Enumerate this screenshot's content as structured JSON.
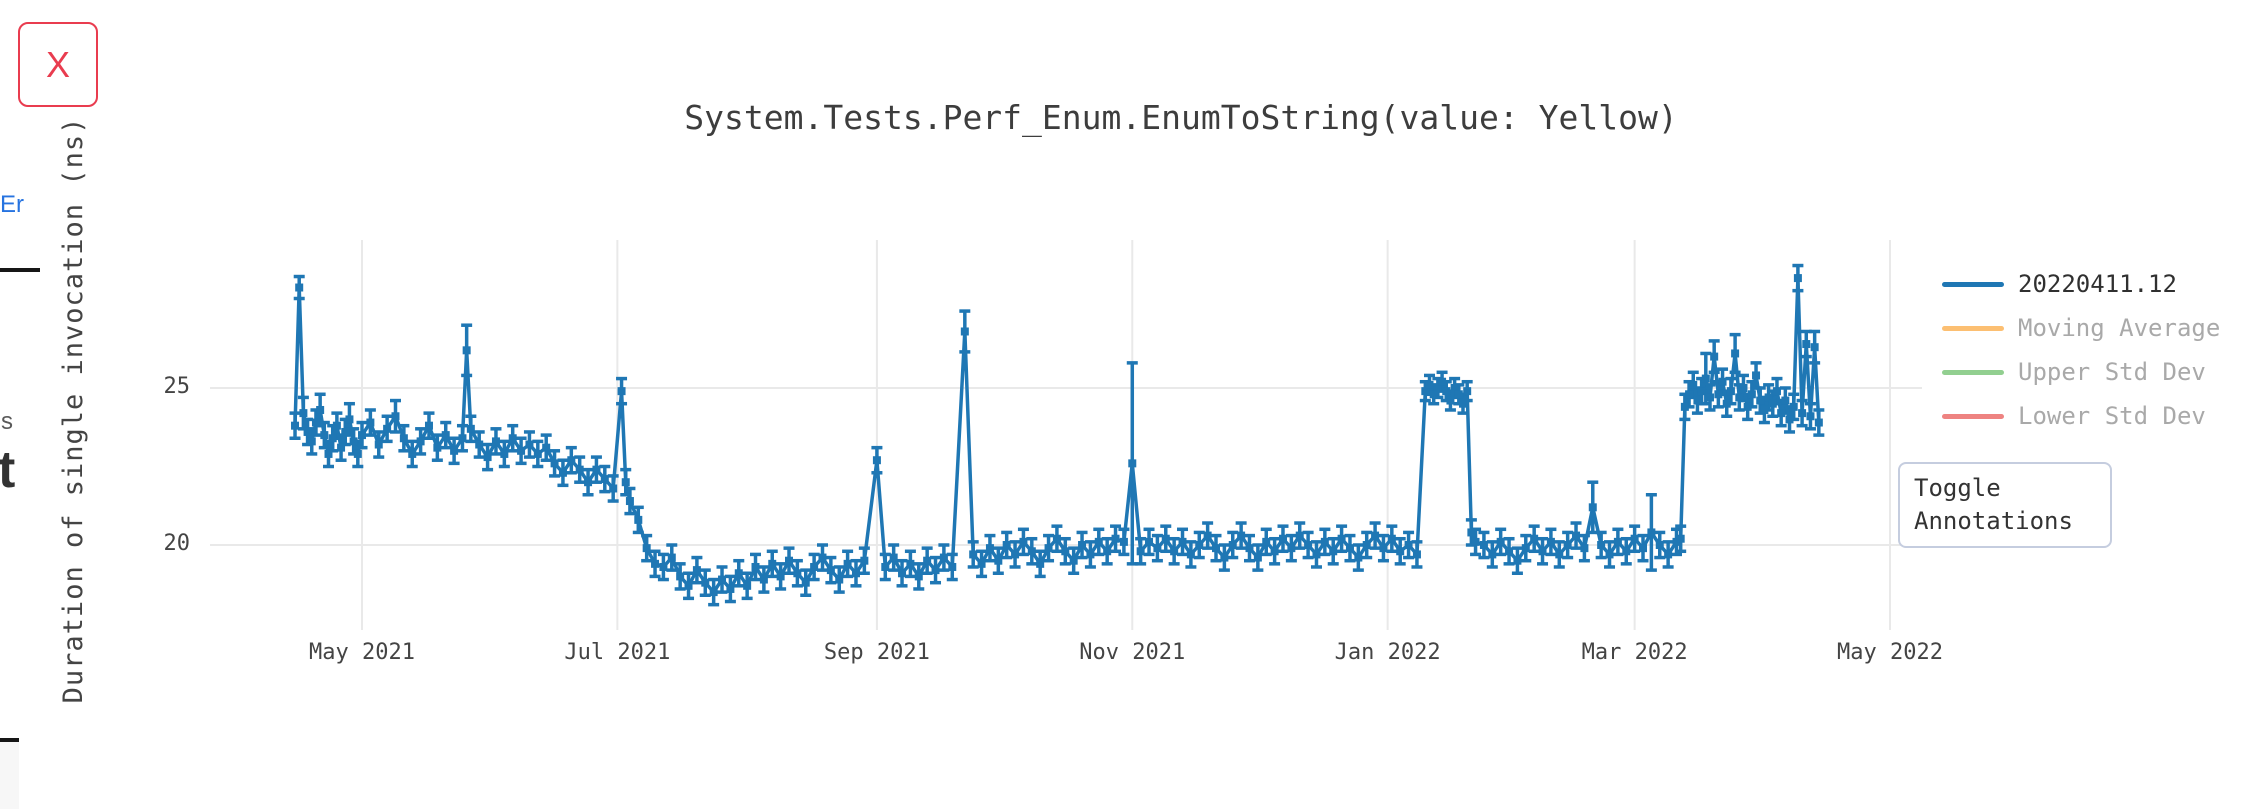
{
  "window": {
    "close_button_label": "X"
  },
  "page_behind": {
    "partial_link_text": "Er",
    "partial_text_s": "s",
    "partial_text_t": "t"
  },
  "controls": {
    "toggle_annotations_label": "Toggle Annotations"
  },
  "chart_data": {
    "type": "line",
    "title": "System.Tests.Perf_Enum.EnumToString(value: Yellow)",
    "xlabel": "",
    "ylabel": "Duration of single invocation (ns)",
    "grid": true,
    "legend_position": "right",
    "x_axis": {
      "tick_labels": [
        "May 2021",
        "Jul 2021",
        "Sep 2021",
        "Nov 2021",
        "Jan 2022",
        "Mar 2022",
        "May 2022"
      ],
      "tick_days_from_may2021": [
        0,
        61,
        123,
        184,
        245,
        304,
        365
      ]
    },
    "y_axis": {
      "tick_labels": [
        "20",
        "25"
      ],
      "tick_values": [
        20,
        25
      ],
      "ylim": [
        17.8,
        29.4
      ]
    },
    "series": [
      {
        "name": "20220411.12",
        "color": "#1f77b4",
        "visible": true,
        "style": "line+markers+errorbars",
        "default_error": 0.4,
        "points_format": "[day_since_2021-05-01, duration_ns, optional_error_ns]",
        "points": [
          [
            -16,
            23.8
          ],
          [
            -15,
            28.2,
            0.35
          ],
          [
            -14,
            24.2,
            0.5
          ],
          [
            -13,
            23.6
          ],
          [
            -12,
            23.3
          ],
          [
            -11,
            23.9
          ],
          [
            -10,
            24.3,
            0.5
          ],
          [
            -9,
            23.5
          ],
          [
            -8,
            22.9
          ],
          [
            -7,
            23.4
          ],
          [
            -6,
            23.8
          ],
          [
            -5,
            23.1
          ],
          [
            -4,
            23.6
          ],
          [
            -3,
            24.0,
            0.5
          ],
          [
            -2,
            23.3
          ],
          [
            -1,
            22.9
          ],
          [
            0,
            23.5
          ],
          [
            2,
            23.9
          ],
          [
            4,
            23.2
          ],
          [
            6,
            23.7
          ],
          [
            8,
            24.1,
            0.5
          ],
          [
            10,
            23.4
          ],
          [
            12,
            22.9
          ],
          [
            14,
            23.3
          ],
          [
            16,
            23.8
          ],
          [
            18,
            23.1
          ],
          [
            20,
            23.5
          ],
          [
            22,
            23.0
          ],
          [
            24,
            23.4
          ],
          [
            25,
            26.2,
            0.8
          ],
          [
            26,
            23.7
          ],
          [
            28,
            23.2
          ],
          [
            30,
            22.8
          ],
          [
            32,
            23.3
          ],
          [
            34,
            22.9
          ],
          [
            36,
            23.4
          ],
          [
            38,
            23.0
          ],
          [
            40,
            23.2
          ],
          [
            42,
            22.9
          ],
          [
            44,
            23.1
          ],
          [
            46,
            22.6
          ],
          [
            48,
            22.3
          ],
          [
            50,
            22.7
          ],
          [
            52,
            22.4
          ],
          [
            54,
            22.0
          ],
          [
            56,
            22.4
          ],
          [
            58,
            22.1
          ],
          [
            60,
            21.8
          ],
          [
            62,
            24.9,
            0.4
          ],
          [
            63,
            22.0
          ],
          [
            64,
            21.4
          ],
          [
            66,
            20.8
          ],
          [
            68,
            19.9
          ],
          [
            70,
            19.4
          ],
          [
            72,
            19.3
          ],
          [
            74,
            19.6
          ],
          [
            76,
            19.0
          ],
          [
            78,
            18.7
          ],
          [
            80,
            19.2
          ],
          [
            82,
            18.8
          ],
          [
            84,
            18.5
          ],
          [
            86,
            18.9
          ],
          [
            88,
            18.6
          ],
          [
            90,
            19.1
          ],
          [
            92,
            18.7
          ],
          [
            94,
            19.3
          ],
          [
            96,
            18.9
          ],
          [
            98,
            19.4
          ],
          [
            100,
            19.0
          ],
          [
            102,
            19.5
          ],
          [
            104,
            19.1
          ],
          [
            106,
            18.8
          ],
          [
            108,
            19.3
          ],
          [
            110,
            19.6
          ],
          [
            112,
            19.2
          ],
          [
            114,
            18.9
          ],
          [
            116,
            19.4
          ],
          [
            118,
            19.1
          ],
          [
            120,
            19.5
          ],
          [
            123,
            22.7,
            0.4
          ],
          [
            125,
            19.3
          ],
          [
            127,
            19.6
          ],
          [
            129,
            19.1
          ],
          [
            131,
            19.4
          ],
          [
            133,
            19.0
          ],
          [
            135,
            19.5
          ],
          [
            137,
            19.2
          ],
          [
            139,
            19.6
          ],
          [
            141,
            19.3
          ],
          [
            144,
            26.8,
            0.65
          ],
          [
            146,
            19.7
          ],
          [
            148,
            19.4
          ],
          [
            150,
            19.9
          ],
          [
            152,
            19.5
          ],
          [
            154,
            20.0
          ],
          [
            156,
            19.7
          ],
          [
            158,
            20.1
          ],
          [
            160,
            19.8
          ],
          [
            162,
            19.4
          ],
          [
            164,
            19.9
          ],
          [
            166,
            20.2
          ],
          [
            168,
            19.8
          ],
          [
            170,
            19.5
          ],
          [
            172,
            20.0
          ],
          [
            174,
            19.7
          ],
          [
            176,
            20.1
          ],
          [
            178,
            19.8
          ],
          [
            180,
            20.2
          ],
          [
            182,
            20.1
          ],
          [
            184,
            22.6,
            3.2
          ],
          [
            186,
            19.8
          ],
          [
            188,
            20.1
          ],
          [
            190,
            19.9
          ],
          [
            192,
            20.2
          ],
          [
            194,
            19.8
          ],
          [
            196,
            20.1
          ],
          [
            198,
            19.7
          ],
          [
            200,
            20.0
          ],
          [
            202,
            20.3
          ],
          [
            204,
            19.9
          ],
          [
            206,
            19.6
          ],
          [
            208,
            20.0
          ],
          [
            210,
            20.3
          ],
          [
            212,
            19.9
          ],
          [
            214,
            19.6
          ],
          [
            216,
            20.1
          ],
          [
            218,
            19.8
          ],
          [
            220,
            20.2
          ],
          [
            222,
            19.9
          ],
          [
            224,
            20.3
          ],
          [
            226,
            20.0
          ],
          [
            228,
            19.7
          ],
          [
            230,
            20.1
          ],
          [
            232,
            19.8
          ],
          [
            234,
            20.2
          ],
          [
            236,
            19.9
          ],
          [
            238,
            19.6
          ],
          [
            240,
            20.0
          ],
          [
            242,
            20.3
          ],
          [
            244,
            19.9
          ],
          [
            246,
            20.2
          ],
          [
            248,
            19.8
          ],
          [
            250,
            20.0
          ],
          [
            252,
            19.7
          ],
          [
            254,
            24.9,
            0.3
          ],
          [
            255,
            25.1,
            0.3
          ],
          [
            256,
            24.8,
            0.3
          ],
          [
            257,
            25.0,
            0.3
          ],
          [
            258,
            25.2,
            0.3
          ],
          [
            259,
            24.9,
            0.3
          ],
          [
            260,
            24.6,
            0.3
          ],
          [
            261,
            25.0,
            0.3
          ],
          [
            262,
            24.8,
            0.3
          ],
          [
            263,
            24.5,
            0.3
          ],
          [
            264,
            24.9,
            0.3
          ],
          [
            265,
            20.4
          ],
          [
            266,
            20.1
          ],
          [
            268,
            20.0
          ],
          [
            270,
            19.7
          ],
          [
            272,
            20.1
          ],
          [
            274,
            19.8
          ],
          [
            276,
            19.5
          ],
          [
            278,
            19.9
          ],
          [
            280,
            20.2
          ],
          [
            282,
            19.8
          ],
          [
            284,
            20.1
          ],
          [
            286,
            19.7
          ],
          [
            288,
            20.0
          ],
          [
            290,
            20.3
          ],
          [
            292,
            19.9
          ],
          [
            294,
            21.2,
            0.8
          ],
          [
            296,
            20.0
          ],
          [
            298,
            19.7
          ],
          [
            300,
            20.1
          ],
          [
            302,
            19.8
          ],
          [
            304,
            20.2
          ],
          [
            306,
            19.9
          ],
          [
            308,
            20.4,
            1.2
          ],
          [
            310,
            20.0
          ],
          [
            312,
            19.7
          ],
          [
            314,
            20.1
          ],
          [
            315,
            20.2
          ],
          [
            316,
            24.4
          ],
          [
            317,
            24.8
          ],
          [
            318,
            25.1
          ],
          [
            319,
            24.6
          ],
          [
            320,
            24.9
          ],
          [
            321,
            25.3,
            0.8
          ],
          [
            322,
            24.7
          ],
          [
            323,
            26.0,
            0.5
          ],
          [
            324,
            24.8
          ],
          [
            325,
            25.2
          ],
          [
            326,
            24.5
          ],
          [
            327,
            24.9
          ],
          [
            328,
            26.1,
            0.6
          ],
          [
            329,
            24.7
          ],
          [
            330,
            25.0
          ],
          [
            331,
            24.4
          ],
          [
            332,
            24.8
          ],
          [
            333,
            25.4
          ],
          [
            334,
            24.6
          ],
          [
            335,
            24.3
          ],
          [
            336,
            24.7
          ],
          [
            337,
            24.5
          ],
          [
            338,
            24.9
          ],
          [
            339,
            24.2
          ],
          [
            340,
            24.6
          ],
          [
            341,
            24.0
          ],
          [
            342,
            24.4
          ],
          [
            343,
            28.5,
            0.4
          ],
          [
            344,
            24.2
          ],
          [
            345,
            26.4,
            0.4
          ],
          [
            346,
            24.1
          ],
          [
            347,
            26.3,
            0.5
          ],
          [
            348,
            23.9
          ]
        ]
      },
      {
        "name": "Moving Average",
        "color": "#fcbf72",
        "visible": false,
        "points": []
      },
      {
        "name": "Upper Std Dev",
        "color": "#92cf90",
        "visible": false,
        "points": []
      },
      {
        "name": "Lower Std Dev",
        "color": "#ee8381",
        "visible": false,
        "points": []
      }
    ]
  },
  "colors": {
    "accent_blue": "#1f77b4",
    "grid": "#e9e9e9",
    "close_red": "#e93c4f",
    "muted_legend_text": "#a9a9a9",
    "button_border": "#c5cddf"
  }
}
